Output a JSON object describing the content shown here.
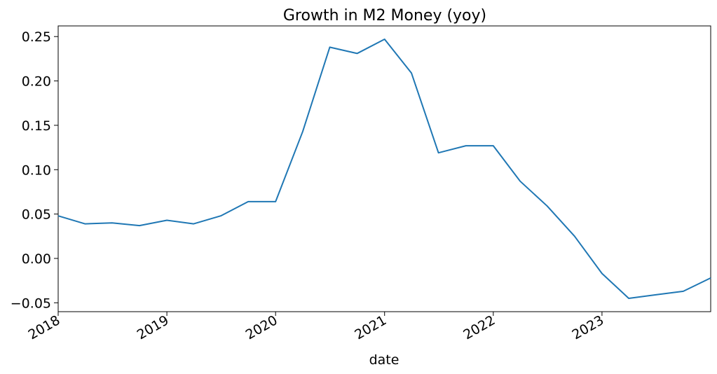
{
  "chart_data": {
    "type": "line",
    "title": "Growth in M2 Money (yoy)",
    "xlabel": "date",
    "ylabel": "",
    "x_dates": [
      "2018-01-01",
      "2018-04-01",
      "2018-07-01",
      "2018-10-01",
      "2019-01-01",
      "2019-04-01",
      "2019-07-01",
      "2019-10-01",
      "2020-01-01",
      "2020-04-01",
      "2020-07-01",
      "2020-10-01",
      "2021-01-01",
      "2021-04-01",
      "2021-07-01",
      "2021-10-01",
      "2022-01-01",
      "2022-04-01",
      "2022-07-01",
      "2022-10-01",
      "2023-01-01",
      "2023-04-01",
      "2023-07-01",
      "2023-10-01",
      "2024-01-01"
    ],
    "series": [
      {
        "values": [
          0.048,
          0.039,
          0.04,
          0.037,
          0.043,
          0.039,
          0.048,
          0.064,
          0.064,
          0.143,
          0.238,
          0.231,
          0.247,
          0.209,
          0.119,
          0.127,
          0.127,
          0.087,
          0.059,
          0.025,
          -0.017,
          -0.045,
          -0.041,
          -0.037,
          -0.022
        ],
        "color": "#1f77b4"
      }
    ],
    "x_ticks": [
      "2018",
      "2019",
      "2020",
      "2021",
      "2022",
      "2023"
    ],
    "y_ticks": [
      "0.25",
      "0.20",
      "0.15",
      "0.10",
      "0.05",
      "0.00",
      "−0.05"
    ],
    "xlim": [
      "2018-01-01",
      "2024-01-01"
    ],
    "ylim": [
      -0.06,
      0.262
    ],
    "grid": false
  }
}
